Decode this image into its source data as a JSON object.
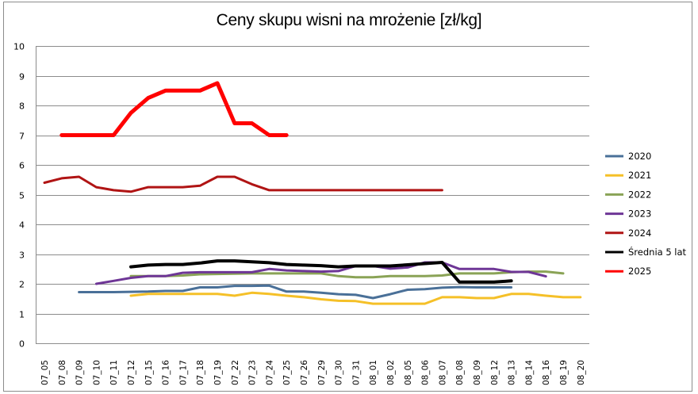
{
  "chart_data": {
    "type": "line",
    "title": "Ceny skupu wisni na mrożenie [zł/kg]",
    "xlabel": "",
    "ylabel": "",
    "ylim": [
      0,
      10
    ],
    "yticks": [
      0,
      1,
      2,
      3,
      4,
      5,
      6,
      7,
      8,
      9,
      10
    ],
    "grid": true,
    "legend_position": "right",
    "categories": [
      "07_05",
      "07_08",
      "07_09",
      "07_10",
      "07_11",
      "07_12",
      "07_15",
      "07_16",
      "07_17",
      "07_18",
      "07_19",
      "07_22",
      "07_23",
      "07_24",
      "07_25",
      "07_26",
      "07_29",
      "07_30",
      "07_31",
      "08_01",
      "08_02",
      "08_05",
      "08_06",
      "08_07",
      "08_08",
      "08_09",
      "08_12",
      "08_13",
      "08_14",
      "08_16",
      "08_19",
      "08_20"
    ],
    "series": [
      {
        "name": "2020",
        "color": "#4a7098",
        "width": 3,
        "values": [
          null,
          null,
          1.72,
          1.72,
          1.72,
          1.73,
          1.74,
          1.76,
          1.76,
          1.88,
          1.88,
          1.93,
          1.93,
          1.94,
          1.74,
          1.74,
          1.7,
          1.65,
          1.63,
          1.52,
          1.65,
          1.8,
          1.82,
          1.87,
          1.89,
          1.88,
          1.88,
          1.88,
          null,
          null,
          null,
          null
        ]
      },
      {
        "name": "2021",
        "color": "#f5c028",
        "width": 3,
        "values": [
          null,
          null,
          null,
          null,
          null,
          1.6,
          1.66,
          1.66,
          1.66,
          1.66,
          1.66,
          1.6,
          1.7,
          1.66,
          1.6,
          1.55,
          1.48,
          1.43,
          1.42,
          1.33,
          1.33,
          1.33,
          1.33,
          1.55,
          1.55,
          1.52,
          1.52,
          1.66,
          1.66,
          1.6,
          1.55,
          1.55
        ]
      },
      {
        "name": "2022",
        "color": "#8aa356",
        "width": 3,
        "values": [
          null,
          null,
          null,
          null,
          null,
          2.26,
          2.26,
          2.26,
          2.28,
          2.32,
          2.33,
          2.34,
          2.35,
          2.35,
          2.35,
          2.35,
          2.35,
          2.26,
          2.22,
          2.22,
          2.26,
          2.26,
          2.26,
          2.28,
          2.35,
          2.35,
          2.35,
          2.39,
          2.41,
          2.41,
          2.35,
          null
        ]
      },
      {
        "name": "2023",
        "color": "#6e3696",
        "width": 3,
        "values": [
          null,
          null,
          null,
          2.0,
          2.1,
          2.2,
          2.26,
          2.26,
          2.37,
          2.39,
          2.39,
          2.39,
          2.39,
          2.5,
          2.45,
          2.43,
          2.41,
          2.43,
          2.6,
          2.6,
          2.51,
          2.55,
          2.72,
          2.72,
          2.5,
          2.5,
          2.5,
          2.4,
          2.4,
          2.25,
          null,
          null
        ]
      },
      {
        "name": "2024",
        "color": "#b01414",
        "width": 3,
        "values": [
          5.4,
          5.55,
          5.6,
          5.25,
          5.15,
          5.1,
          5.25,
          5.25,
          5.25,
          5.3,
          5.6,
          5.6,
          5.35,
          5.15,
          5.15,
          5.15,
          5.15,
          5.15,
          5.15,
          5.15,
          5.15,
          5.15,
          5.15,
          5.15,
          null,
          null,
          null,
          null,
          null,
          null,
          null,
          null
        ]
      },
      {
        "name": "Średnia 5 lat",
        "color": "#000000",
        "width": 4,
        "values": [
          null,
          null,
          null,
          null,
          null,
          2.57,
          2.63,
          2.65,
          2.65,
          2.7,
          2.77,
          2.77,
          2.74,
          2.71,
          2.65,
          2.63,
          2.61,
          2.57,
          2.6,
          2.6,
          2.6,
          2.64,
          2.68,
          2.72,
          2.06,
          2.06,
          2.06,
          2.1,
          null,
          null,
          null,
          null
        ]
      },
      {
        "name": "2025",
        "color": "#ff0000",
        "width": 5,
        "values": [
          null,
          7.0,
          7.0,
          7.0,
          7.0,
          7.75,
          8.25,
          8.5,
          8.5,
          8.5,
          8.75,
          7.4,
          7.4,
          7.0,
          7.0,
          null,
          null,
          null,
          null,
          null,
          null,
          null,
          null,
          null,
          null,
          null,
          null,
          null,
          null,
          null,
          null,
          null
        ]
      }
    ]
  },
  "style": {
    "gridline_color": "#8c8c8c",
    "axis_color": "#8c8c8c",
    "frame_color": "#8c8c8c"
  }
}
